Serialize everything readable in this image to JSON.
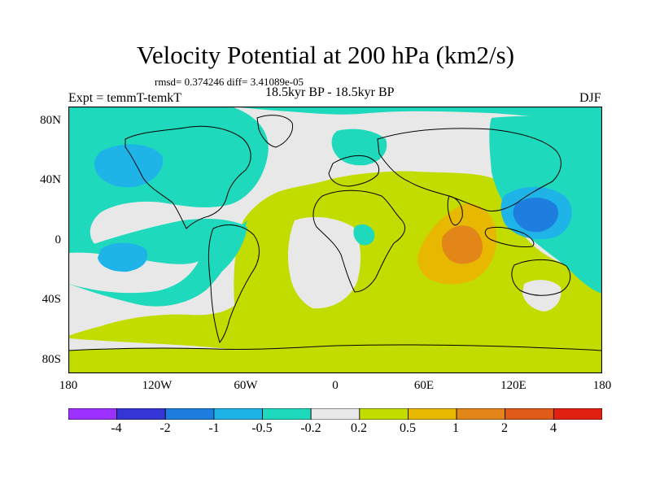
{
  "title": "Velocity Potential at 200 hPa (km2/s)",
  "stats": "rmsd= 0.374246 diff= 3.41089e-05",
  "subtitle": "18.5kyr BP - 18.5kyr BP",
  "expt_label": "Expt = temmT-temkT",
  "season": "DJF",
  "y_axis": {
    "labels": [
      "80N",
      "40N",
      "0",
      "40S",
      "80S"
    ]
  },
  "x_axis": {
    "labels": [
      "180",
      "120W",
      "60W",
      "0",
      "60E",
      "120E",
      "180"
    ]
  },
  "colorbar": {
    "labels": [
      "-4",
      "-2",
      "-1",
      "-0.5",
      "-0.2",
      "0.2",
      "0.5",
      "1",
      "2",
      "4"
    ],
    "colors": [
      "#9b30ff",
      "#3535d6",
      "#1e7ee0",
      "#1fb4e8",
      "#1ed9bb",
      "#e8e8e8",
      "#c3dc00",
      "#e8b800",
      "#e2861a",
      "#e05a18",
      "#e02010"
    ]
  },
  "colors": {
    "neutral": "#e8e8e8",
    "light_positive": "#c3dc00",
    "light_negative": "#1ed9bb",
    "medium_negative": "#1fb4e8",
    "strong_negative": "#1e7ee0",
    "medium_positive": "#e8b800",
    "strong_positive": "#e2861a",
    "peak_positive": "#e05a18"
  }
}
